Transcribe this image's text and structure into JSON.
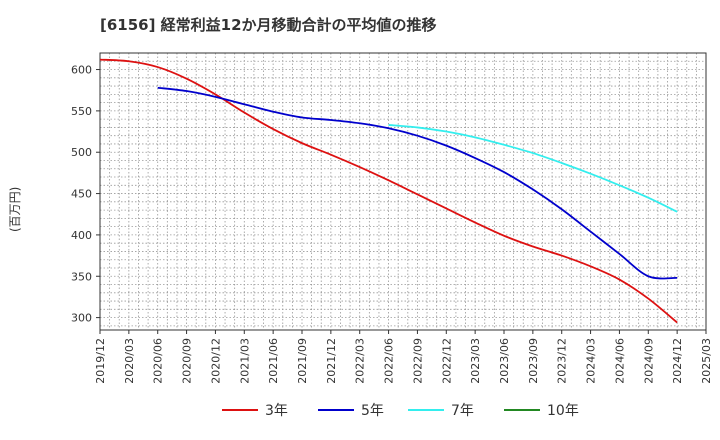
{
  "chart_data": {
    "type": "line",
    "title": "[6156]  経常利益12か月移動合計の平均値の推移",
    "ylabel": "(百万円)",
    "xlabel": "",
    "ylim": [
      285,
      620
    ],
    "yticks": [
      300,
      350,
      400,
      450,
      500,
      550,
      600
    ],
    "x_ticks": [
      "2019/12",
      "2020/03",
      "2020/06",
      "2020/09",
      "2020/12",
      "2021/03",
      "2021/06",
      "2021/09",
      "2021/12",
      "2022/03",
      "2022/06",
      "2022/09",
      "2022/12",
      "2023/03",
      "2023/06",
      "2023/09",
      "2023/12",
      "2024/03",
      "2024/06",
      "2024/09",
      "2024/12",
      "2025/03"
    ],
    "grid": true,
    "legend_position": "bottom",
    "series": [
      {
        "name": "3年",
        "color": "#dd1111",
        "points": [
          [
            "2019/12",
            612
          ],
          [
            "2020/03",
            610
          ],
          [
            "2020/06",
            603
          ],
          [
            "2020/09",
            589
          ],
          [
            "2020/12",
            570
          ],
          [
            "2021/03",
            548
          ],
          [
            "2021/06",
            528
          ],
          [
            "2021/09",
            511
          ],
          [
            "2021/12",
            497
          ],
          [
            "2022/03",
            482
          ],
          [
            "2022/06",
            466
          ],
          [
            "2022/09",
            449
          ],
          [
            "2022/12",
            432
          ],
          [
            "2023/03",
            415
          ],
          [
            "2023/06",
            399
          ],
          [
            "2023/09",
            386
          ],
          [
            "2023/12",
            375
          ],
          [
            "2024/03",
            362
          ],
          [
            "2024/06",
            346
          ],
          [
            "2024/09",
            323
          ],
          [
            "2024/12",
            294
          ]
        ]
      },
      {
        "name": "5年",
        "color": "#0000cc",
        "points": [
          [
            "2020/06",
            578
          ],
          [
            "2020/09",
            574
          ],
          [
            "2020/12",
            567
          ],
          [
            "2021/03",
            558
          ],
          [
            "2021/06",
            549
          ],
          [
            "2021/09",
            542
          ],
          [
            "2021/12",
            539
          ],
          [
            "2022/03",
            535
          ],
          [
            "2022/06",
            529
          ],
          [
            "2022/09",
            520
          ],
          [
            "2022/12",
            508
          ],
          [
            "2023/03",
            493
          ],
          [
            "2023/06",
            476
          ],
          [
            "2023/09",
            455
          ],
          [
            "2023/12",
            431
          ],
          [
            "2024/03",
            404
          ],
          [
            "2024/06",
            377
          ],
          [
            "2024/09",
            350
          ],
          [
            "2024/12",
            348
          ]
        ]
      },
      {
        "name": "7年",
        "color": "#33eeee",
        "points": [
          [
            "2022/06",
            533
          ],
          [
            "2022/09",
            530
          ],
          [
            "2022/12",
            525
          ],
          [
            "2023/03",
            518
          ],
          [
            "2023/06",
            509
          ],
          [
            "2023/09",
            499
          ],
          [
            "2023/12",
            487
          ],
          [
            "2024/03",
            474
          ],
          [
            "2024/06",
            460
          ],
          [
            "2024/09",
            445
          ],
          [
            "2024/12",
            428
          ]
        ]
      },
      {
        "name": "10年",
        "color": "#228822",
        "points": []
      }
    ]
  }
}
